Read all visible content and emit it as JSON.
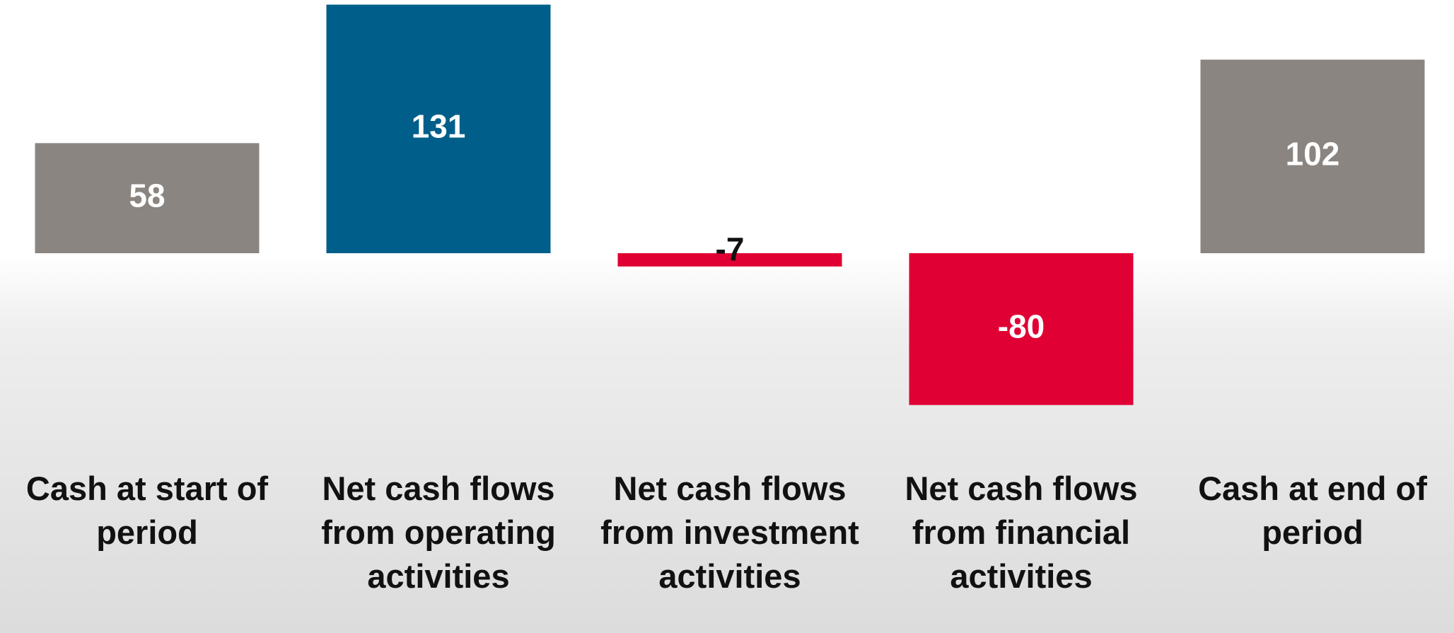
{
  "chart_data": {
    "type": "bar",
    "categories": [
      "Cash at start of period",
      "Net cash flows from operating activities",
      "Net cash flows from investment activities",
      "Net cash flows from financial activities",
      "Cash at end of period"
    ],
    "values": [
      58,
      131,
      -7,
      -80,
      102
    ],
    "colors": [
      "#8a8580",
      "#005f8a",
      "#e00034",
      "#e00034",
      "#8a8580"
    ]
  }
}
